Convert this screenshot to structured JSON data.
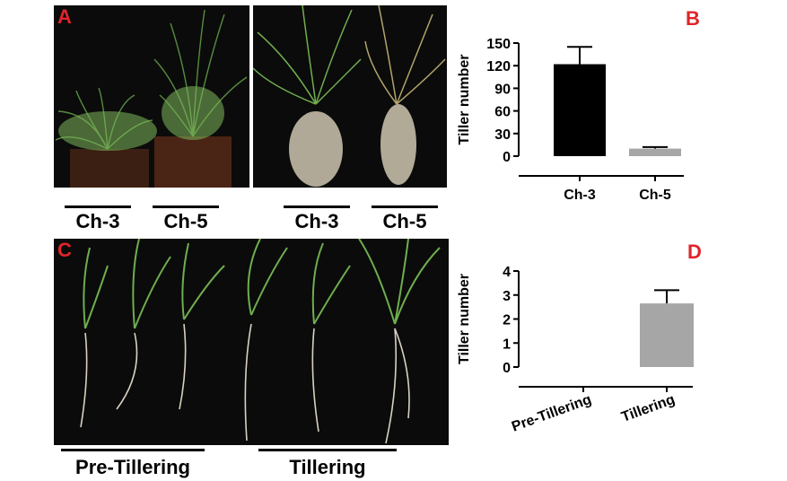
{
  "panels": {
    "a_letter": "A",
    "b_letter": "B",
    "c_letter": "C",
    "d_letter": "D"
  },
  "photo_labels": {
    "a_left": [
      "Ch-3",
      "Ch-5"
    ],
    "a_right": [
      "Ch-3",
      "Ch-5"
    ],
    "c": [
      "Pre-Tillering",
      "Tillering"
    ]
  },
  "colors": {
    "panel_letter": "#e0242a",
    "photo_background": "#0b0b0b",
    "bar_dark": "#000000",
    "bar_gray": "#a6a6a6"
  },
  "chart_data": [
    {
      "type": "bar",
      "panel": "B",
      "categories": [
        "Ch-3",
        "Ch-5"
      ],
      "values": [
        122,
        10
      ],
      "error": [
        23,
        2
      ],
      "bar_colors": [
        "#000000",
        "#a6a6a6"
      ],
      "ylabel": "Tiller number",
      "ylim": [
        0,
        150
      ],
      "yticks": [
        "0",
        "30",
        "60",
        "90",
        "120",
        "150"
      ],
      "grid": false
    },
    {
      "type": "bar",
      "panel": "D",
      "categories": [
        "Pre-Tillering",
        "Tillering"
      ],
      "values": [
        0,
        2.65
      ],
      "error": [
        0,
        0.55
      ],
      "bar_colors": [
        "#a6a6a6",
        "#a6a6a6"
      ],
      "ylabel": "Tiller number",
      "ylim": [
        0,
        4
      ],
      "yticks": [
        "0",
        "1",
        "2",
        "3",
        "4"
      ],
      "grid": false
    }
  ]
}
